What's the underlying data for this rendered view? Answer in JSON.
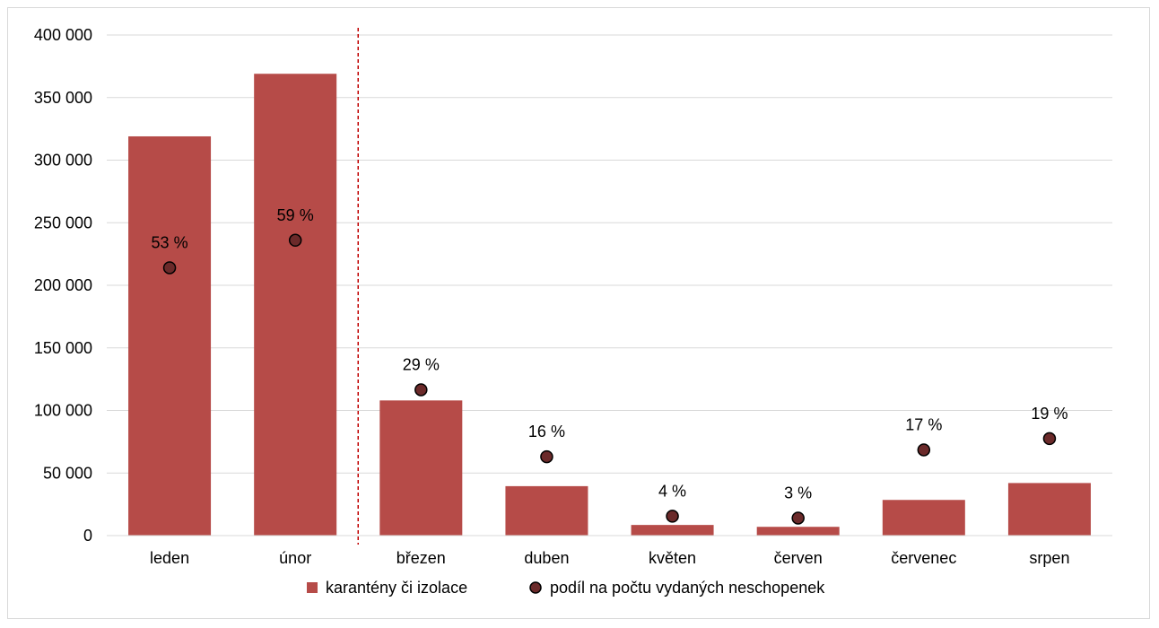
{
  "chart_data": {
    "type": "bar",
    "categories": [
      "leden",
      "únor",
      "březen",
      "duben",
      "květen",
      "červen",
      "červenec",
      "srpen"
    ],
    "series": [
      {
        "name": "karantény či izolace",
        "type": "bar",
        "color": "#B64B48",
        "values": [
          319000,
          369000,
          108000,
          39500,
          8500,
          7000,
          28500,
          42000
        ]
      },
      {
        "name": "podíl na počtu vydaných neschopenek",
        "type": "scatter",
        "color": "#6B2A2A",
        "values": [
          214000,
          236000,
          116500,
          63000,
          15500,
          14000,
          68500,
          77500
        ],
        "labels": [
          "53 %",
          "59 %",
          "29 %",
          "16 %",
          "4 %",
          "3 %",
          "17 %",
          "19 %"
        ]
      }
    ],
    "ylim": [
      0,
      400000
    ],
    "yticks": [
      "0",
      "50 000",
      "100 000",
      "150 000",
      "200 000",
      "250 000",
      "300 000",
      "350 000",
      "400 000"
    ],
    "grid": true,
    "divider_after_category": "únor",
    "legend_position": "bottom"
  }
}
